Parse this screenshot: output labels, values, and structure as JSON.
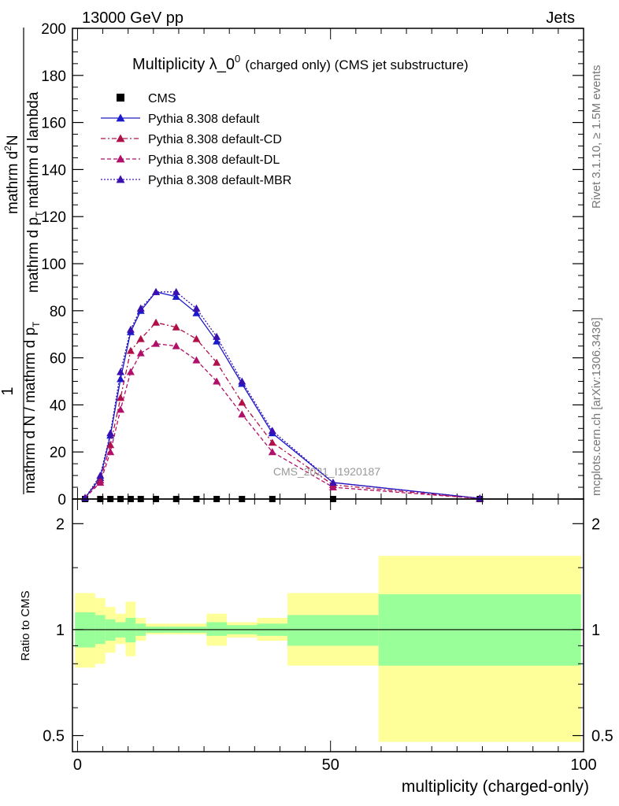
{
  "header": {
    "left": "13000 GeV pp",
    "right": "Jets"
  },
  "side_labels": {
    "rivet": "Rivet 3.1.10, ≥ 1.5M events",
    "mcplots": "mcplots.cern.ch [arXiv:1306.3436]"
  },
  "watermark": "CMS_2021_I1920187",
  "chart_data": [
    {
      "type": "line",
      "title_main": "Multiplicity λ_0",
      "title_sup": "0",
      "title_suffix": "(charged only) (CMS jet substructure)",
      "xlabel": "multiplicity (charged-only)",
      "ylabel_top": "1",
      "ylabel_bottom": "mathrm d N / mathrm d p",
      "ylabel_bottom_sub": "T",
      "ylabel_mid": "mathrm d p",
      "ylabel_mid2": "mathrm d lambda",
      "ylabel_numer": "mathrm d",
      "ylabel_numer_sup": "2",
      "ylabel_numer_N": "N",
      "xlim": [
        -1,
        100
      ],
      "ylim": [
        0,
        200
      ],
      "yticks": [
        0,
        20,
        40,
        60,
        80,
        100,
        120,
        140,
        160,
        180,
        200
      ],
      "xticks": [
        0,
        50,
        100
      ],
      "legend_position": "top-left",
      "x": [
        1.5,
        4.5,
        6.5,
        8.5,
        10.5,
        12.5,
        15.5,
        19.5,
        23.5,
        27.5,
        32.5,
        38.5,
        50.5,
        79.5
      ],
      "series": [
        {
          "name": "CMS",
          "color": "#000000",
          "marker": "square",
          "values": [
            0,
            0,
            0,
            0,
            0,
            0,
            0,
            0,
            0,
            0,
            0,
            0,
            0,
            0
          ]
        },
        {
          "name": "Pythia 8.308 default",
          "color": "#1a1acc",
          "dash": "solid",
          "values": [
            0.5,
            9,
            27,
            51,
            71,
            80,
            88,
            86,
            79,
            67,
            49,
            28,
            7,
            0.3
          ]
        },
        {
          "name": "Pythia 8.308 default-CD",
          "color": "#b0104a",
          "dash": "dashdot",
          "values": [
            0.5,
            8,
            23,
            43,
            63,
            68,
            75,
            73,
            68,
            58,
            41,
            24,
            6,
            0.2
          ]
        },
        {
          "name": "Pythia 8.308 default-DL",
          "color": "#b0106a",
          "dash": "dashed",
          "values": [
            0.5,
            7,
            20,
            38,
            54,
            62,
            66,
            65,
            59,
            50,
            36,
            20,
            5,
            0.2
          ]
        },
        {
          "name": "Pythia 8.308 default-MBR",
          "color": "#3a10b0",
          "dash": "dotted",
          "values": [
            0.5,
            10,
            28,
            54,
            72,
            81,
            88,
            88,
            81,
            69,
            50,
            29,
            7,
            0.3
          ]
        }
      ]
    },
    {
      "type": "area",
      "ylabel": "Ratio to CMS",
      "xlim": [
        -1,
        100
      ],
      "ylim": [
        0.45,
        2.35
      ],
      "yscale": "log",
      "yticks": [
        0.5,
        1,
        2
      ],
      "reference_line": 1,
      "bins": [
        {
          "x0": -0.5,
          "x1": 3.5,
          "inner": [
            0.89,
            1.12
          ],
          "outer": [
            0.78,
            1.27
          ]
        },
        {
          "x0": 3.5,
          "x1": 5.5,
          "inner": [
            0.91,
            1.1
          ],
          "outer": [
            0.8,
            1.23
          ]
        },
        {
          "x0": 5.5,
          "x1": 7.5,
          "inner": [
            0.93,
            1.07
          ],
          "outer": [
            0.86,
            1.16
          ]
        },
        {
          "x0": 7.5,
          "x1": 9.5,
          "inner": [
            0.95,
            1.05
          ],
          "outer": [
            0.91,
            1.11
          ]
        },
        {
          "x0": 9.5,
          "x1": 11.5,
          "inner": [
            0.92,
            1.08
          ],
          "outer": [
            0.84,
            1.2
          ]
        },
        {
          "x0": 11.5,
          "x1": 13.5,
          "inner": [
            0.96,
            1.04
          ],
          "outer": [
            0.93,
            1.08
          ]
        },
        {
          "x0": 13.5,
          "x1": 17.5,
          "inner": [
            0.98,
            1.02
          ],
          "outer": [
            0.97,
            1.04
          ]
        },
        {
          "x0": 17.5,
          "x1": 21.5,
          "inner": [
            0.98,
            1.02
          ],
          "outer": [
            0.97,
            1.04
          ]
        },
        {
          "x0": 21.5,
          "x1": 25.5,
          "inner": [
            0.98,
            1.02
          ],
          "outer": [
            0.97,
            1.04
          ]
        },
        {
          "x0": 25.5,
          "x1": 29.5,
          "inner": [
            0.96,
            1.05
          ],
          "outer": [
            0.9,
            1.11
          ]
        },
        {
          "x0": 29.5,
          "x1": 35.5,
          "inner": [
            0.97,
            1.03
          ],
          "outer": [
            0.95,
            1.05
          ]
        },
        {
          "x0": 35.5,
          "x1": 41.5,
          "inner": [
            0.96,
            1.04
          ],
          "outer": [
            0.93,
            1.08
          ]
        },
        {
          "x0": 41.5,
          "x1": 59.5,
          "inner": [
            0.9,
            1.1
          ],
          "outer": [
            0.79,
            1.27
          ]
        },
        {
          "x0": 59.5,
          "x1": 99.5,
          "inner": [
            0.79,
            1.26
          ],
          "outer": [
            0.48,
            1.62
          ]
        }
      ],
      "colors": {
        "inner": "#99ff99",
        "outer": "#ffff99"
      }
    }
  ]
}
